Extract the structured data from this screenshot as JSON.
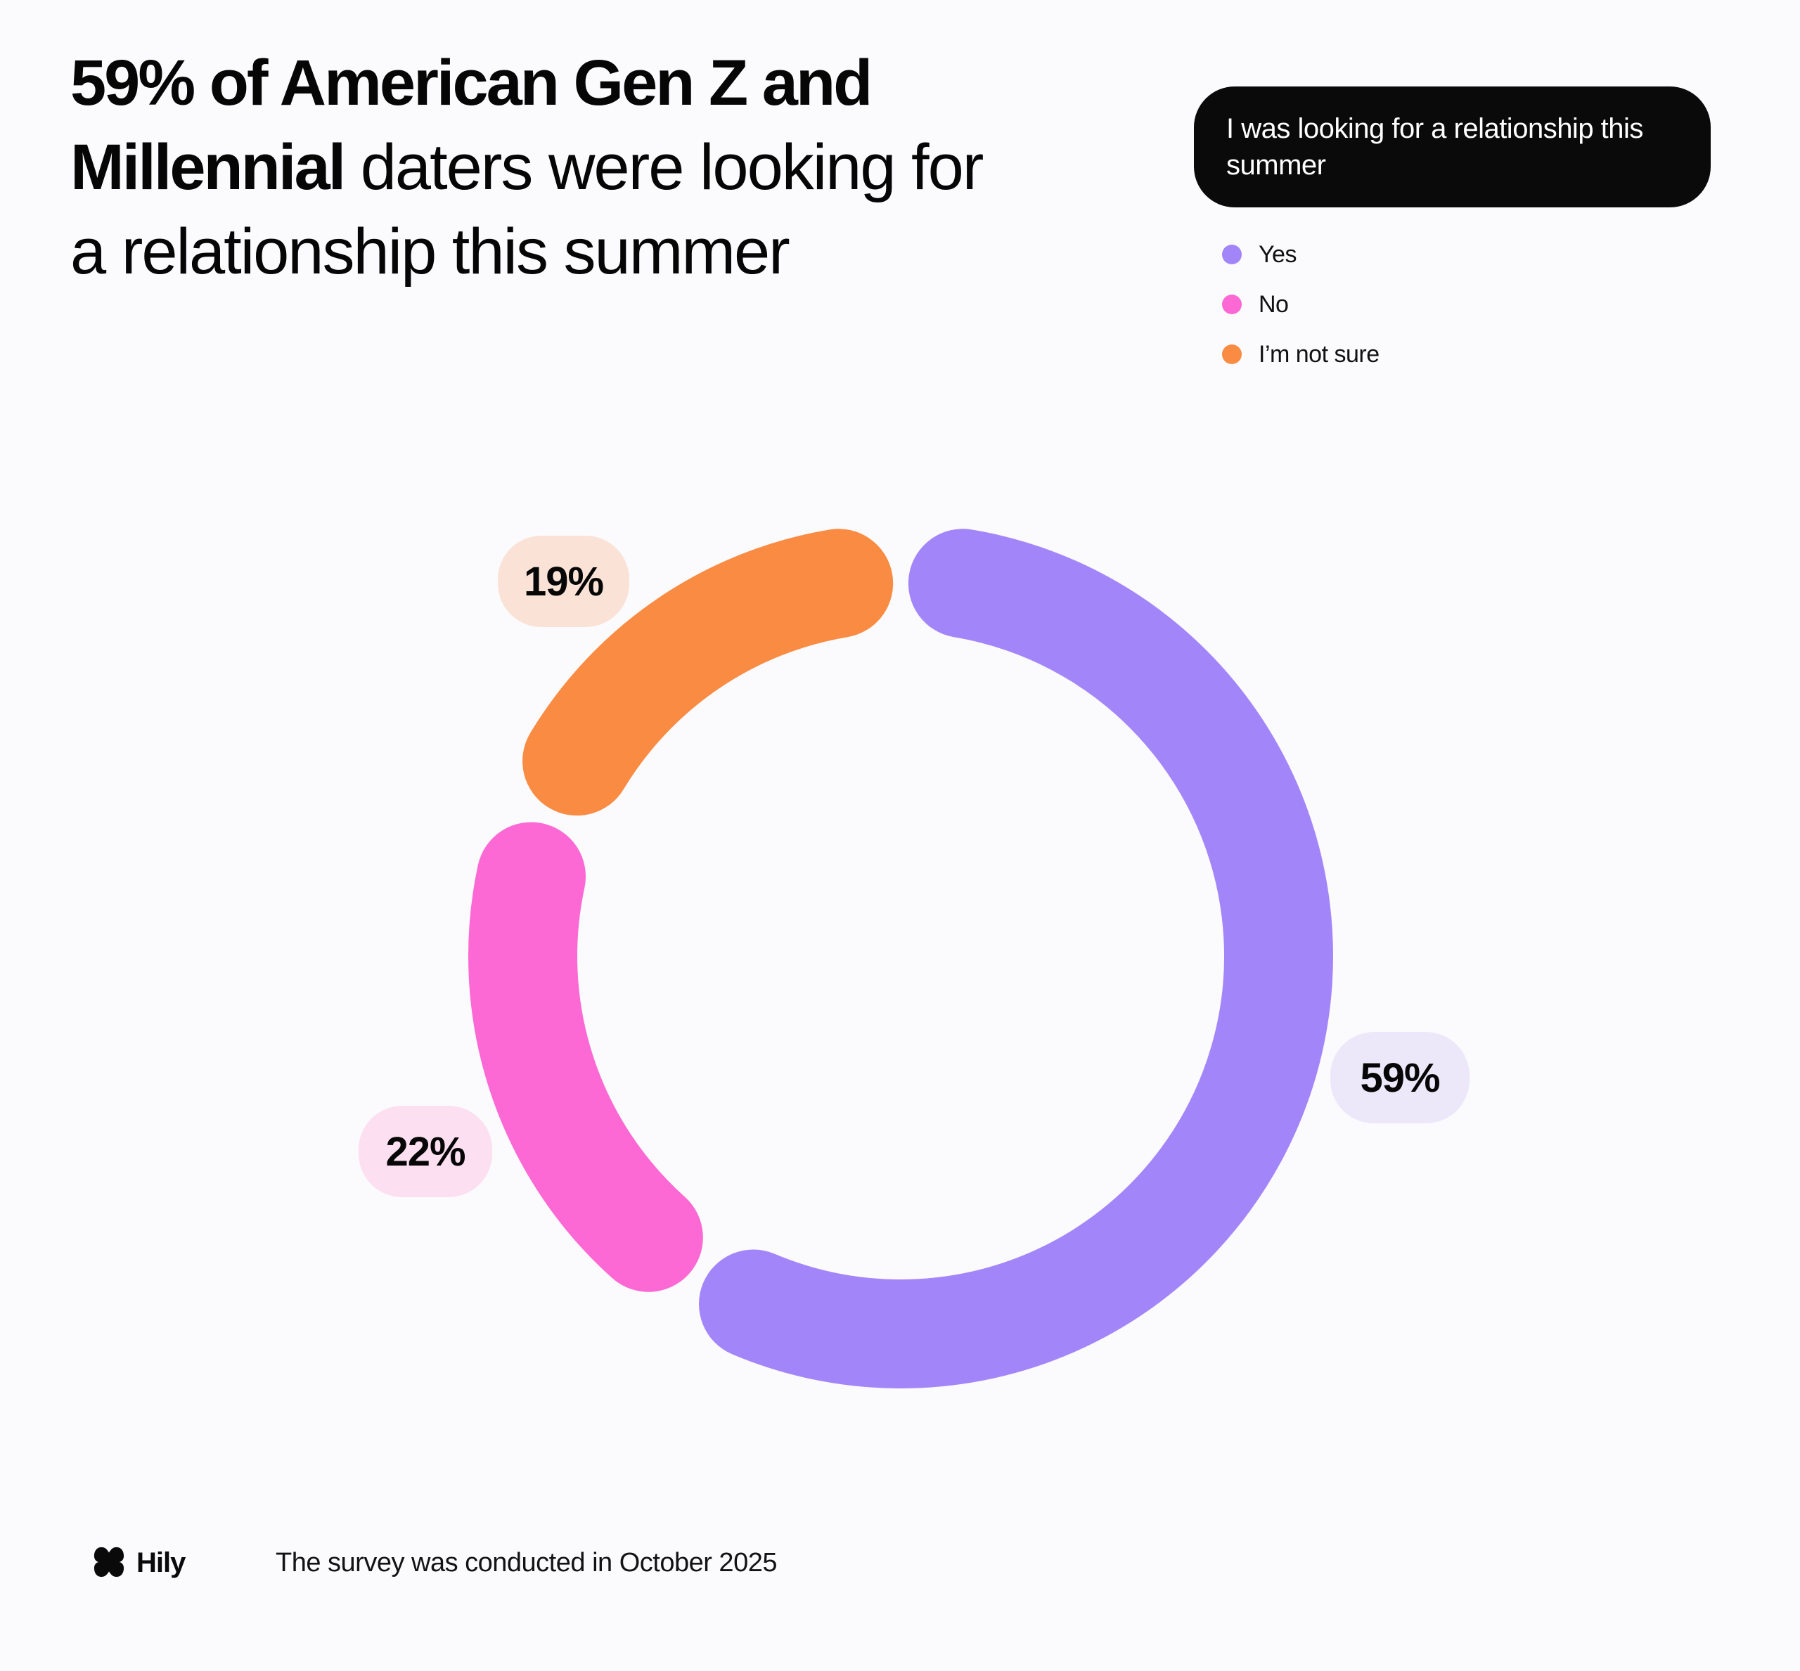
{
  "page": {
    "background_color": "#FBFAFD",
    "text_color": "#060606"
  },
  "title": {
    "line1_bold": "59% of American Gen Z and",
    "line2_bold": "Millennial",
    "line2_regular": " daters were looking for",
    "line3_regular": "a relationship this summer"
  },
  "legend": {
    "panel_bg": "#0A0A0A",
    "panel_text_color": "#FFFFFF",
    "question": "I was looking for a relationship this summer",
    "items": [
      {
        "label": "Yes",
        "color": "#A385FA"
      },
      {
        "label": "No",
        "color": "#FC69D4"
      },
      {
        "label": "I’m not sure",
        "color": "#F98B42"
      }
    ]
  },
  "chart_data": {
    "type": "pie",
    "subtype": "donut",
    "title": "I was looking for a relationship this summer",
    "categories": [
      "Yes",
      "No",
      "I'm not sure"
    ],
    "values": [
      59,
      22,
      19
    ],
    "unit": "%",
    "colors": [
      "#A385FA",
      "#FC69D4",
      "#F98B42"
    ],
    "labels": [
      "59%",
      "22%",
      "19%"
    ],
    "label_bg": [
      "#ECE8FA",
      "#FCDFF0",
      "#FAE3D6"
    ],
    "start_angle_deg": 0,
    "direction": "clockwise",
    "donut_hole_ratio": 0.75,
    "segment_gap_deg": 2.4,
    "legend_position": "top-right"
  },
  "footer": {
    "brand": "Hily",
    "note": "The survey was conducted in October 2025"
  }
}
